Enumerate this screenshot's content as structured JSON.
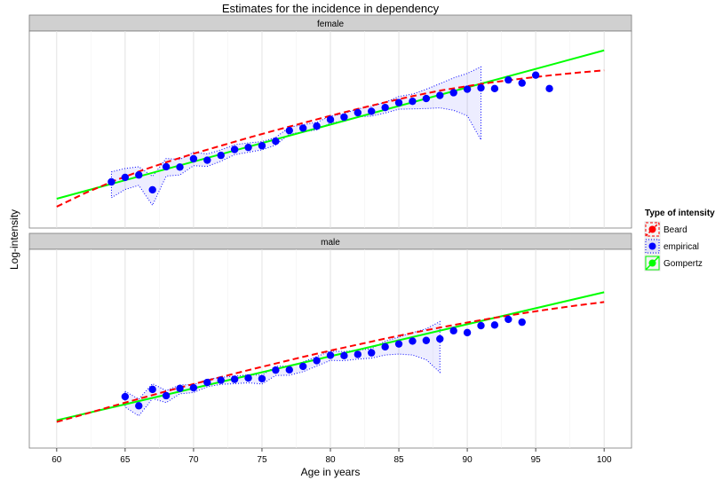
{
  "chart_data": {
    "type": "line",
    "title": "Estimates for the incidence in dependency",
    "xlabel": "Age in years",
    "ylabel": "Log-intensity",
    "xlim": [
      58,
      102
    ],
    "x_ticks": [
      60,
      65,
      70,
      75,
      80,
      85,
      90,
      95,
      100
    ],
    "grid": true,
    "legend": {
      "title": "Type of intensity",
      "position": "right",
      "entries": [
        {
          "label": "Beard",
          "color": "#ff0000",
          "style": "dashed line"
        },
        {
          "label": "empirical",
          "color": "#0000ff",
          "style": "points with dotted band"
        },
        {
          "label": "Gompertz",
          "color": "#00ff00",
          "style": "solid line"
        }
      ]
    },
    "panels": [
      {
        "label": "female",
        "ylim": [
          -5.2,
          0.52
        ],
        "series": [
          {
            "name": "empirical",
            "x": [
              64,
              65,
              66,
              67,
              68,
              69,
              70,
              71,
              72,
              73,
              74,
              75,
              76,
              77,
              78,
              79,
              80,
              81,
              82,
              83,
              84,
              85,
              86,
              87,
              88,
              89,
              90,
              91,
              92,
              93,
              94,
              95,
              96
            ],
            "y": [
              -3.86,
              -3.73,
              -3.66,
              -4.09,
              -3.42,
              -3.43,
              -3.19,
              -3.23,
              -3.09,
              -2.92,
              -2.86,
              -2.81,
              -2.68,
              -2.37,
              -2.3,
              -2.24,
              -2.05,
              -1.98,
              -1.85,
              -1.81,
              -1.7,
              -1.56,
              -1.52,
              -1.44,
              -1.35,
              -1.27,
              -1.17,
              -1.13,
              -1.15,
              -0.9,
              -0.99,
              -0.76,
              -1.15
            ]
          },
          {
            "name": "empirical",
            "band": true,
            "x": [
              64,
              65,
              66,
              67,
              68,
              69,
              70,
              71,
              72,
              73,
              74,
              75,
              76,
              77,
              78,
              79,
              80,
              81,
              82,
              83,
              84,
              85,
              86,
              87,
              88,
              89,
              90,
              91
            ],
            "lower": [
              -4.32,
              -4.08,
              -3.96,
              -4.54,
              -3.69,
              -3.66,
              -3.39,
              -3.41,
              -3.26,
              -3.07,
              -3.0,
              -2.93,
              -2.79,
              -2.47,
              -2.41,
              -2.35,
              -2.15,
              -2.09,
              -1.97,
              -1.95,
              -1.86,
              -1.75,
              -1.74,
              -1.73,
              -1.71,
              -1.78,
              -1.94,
              -2.64
            ],
            "upper": [
              -3.57,
              -3.47,
              -3.42,
              -3.7,
              -3.18,
              -3.21,
              -3.0,
              -3.05,
              -2.93,
              -2.78,
              -2.73,
              -2.69,
              -2.57,
              -2.27,
              -2.2,
              -2.13,
              -1.95,
              -1.88,
              -1.74,
              -1.67,
              -1.55,
              -1.38,
              -1.31,
              -1.17,
              -1.01,
              -0.84,
              -0.71,
              -0.52
            ]
          },
          {
            "name": "Beard",
            "x": [
              60,
              62,
              64,
              66,
              68,
              70,
              72,
              74,
              76,
              78,
              80,
              82,
              84,
              86,
              88,
              90,
              92,
              94,
              96,
              98,
              100
            ],
            "y": [
              -4.58,
              -4.2,
              -3.86,
              -3.56,
              -3.29,
              -3.04,
              -2.81,
              -2.58,
              -2.36,
              -2.15,
              -1.94,
              -1.74,
              -1.55,
              -1.37,
              -1.21,
              -1.08,
              -0.96,
              -0.86,
              -0.77,
              -0.69,
              -0.62
            ]
          },
          {
            "name": "Gompertz",
            "x": [
              60,
              100
            ],
            "y": [
              -4.35,
              -0.04
            ]
          }
        ]
      },
      {
        "label": "male",
        "ylim": [
          -6.4,
          -0.1
        ],
        "series": [
          {
            "name": "empirical",
            "x": [
              65,
              66,
              67,
              68,
              69,
              70,
              71,
              72,
              73,
              74,
              75,
              76,
              77,
              78,
              79,
              80,
              81,
              82,
              83,
              84,
              85,
              86,
              87,
              88,
              89,
              90,
              91,
              92,
              93,
              94
            ],
            "y": [
              -4.77,
              -5.06,
              -4.54,
              -4.74,
              -4.51,
              -4.49,
              -4.32,
              -4.25,
              -4.22,
              -4.18,
              -4.2,
              -3.93,
              -3.92,
              -3.81,
              -3.63,
              -3.46,
              -3.47,
              -3.43,
              -3.38,
              -3.19,
              -3.1,
              -3.01,
              -2.99,
              -2.94,
              -2.68,
              -2.74,
              -2.52,
              -2.5,
              -2.32,
              -2.41
            ]
          },
          {
            "name": "empirical",
            "band": true,
            "x": [
              65,
              66,
              67,
              68,
              69,
              70,
              71,
              72,
              73,
              74,
              75,
              76,
              77,
              78,
              79,
              80,
              81,
              82,
              83,
              84,
              85,
              86,
              87,
              88
            ],
            "lower": [
              -5.1,
              -5.38,
              -4.83,
              -4.96,
              -4.68,
              -4.64,
              -4.46,
              -4.38,
              -4.36,
              -4.33,
              -4.37,
              -4.1,
              -4.09,
              -3.98,
              -3.8,
              -3.62,
              -3.63,
              -3.58,
              -3.55,
              -3.45,
              -3.42,
              -3.45,
              -3.6,
              -4.0
            ]
          },
          {
            "name": "empirical",
            "band": true,
            "x": [
              65,
              66,
              67,
              68,
              69,
              70,
              71,
              72,
              73,
              74,
              75,
              76,
              77,
              78,
              79,
              80,
              81,
              82,
              83,
              84,
              85,
              86,
              87,
              88
            ],
            "upper": [
              -4.6,
              -4.85,
              -4.36,
              -4.58,
              -4.4,
              -4.39,
              -4.22,
              -4.16,
              -4.12,
              -4.08,
              -4.09,
              -3.81,
              -3.8,
              -3.67,
              -3.5,
              -3.33,
              -3.34,
              -3.3,
              -3.25,
              -3.01,
              -2.88,
              -2.74,
              -2.62,
              -2.39
            ]
          },
          {
            "name": "Beard",
            "x": [
              60,
              62,
              64,
              66,
              68,
              70,
              72,
              74,
              76,
              78,
              80,
              82,
              84,
              86,
              88,
              90,
              92,
              94,
              96,
              98,
              100
            ],
            "y": [
              -5.57,
              -5.33,
              -5.08,
              -4.84,
              -4.6,
              -4.37,
              -4.15,
              -3.93,
              -3.72,
              -3.51,
              -3.31,
              -3.12,
              -2.93,
              -2.75,
              -2.58,
              -2.42,
              -2.27,
              -2.13,
              -2.0,
              -1.88,
              -1.77
            ]
          },
          {
            "name": "Gompertz",
            "x": [
              60,
              100
            ],
            "y": [
              -5.52,
              -1.46
            ]
          }
        ]
      }
    ]
  }
}
